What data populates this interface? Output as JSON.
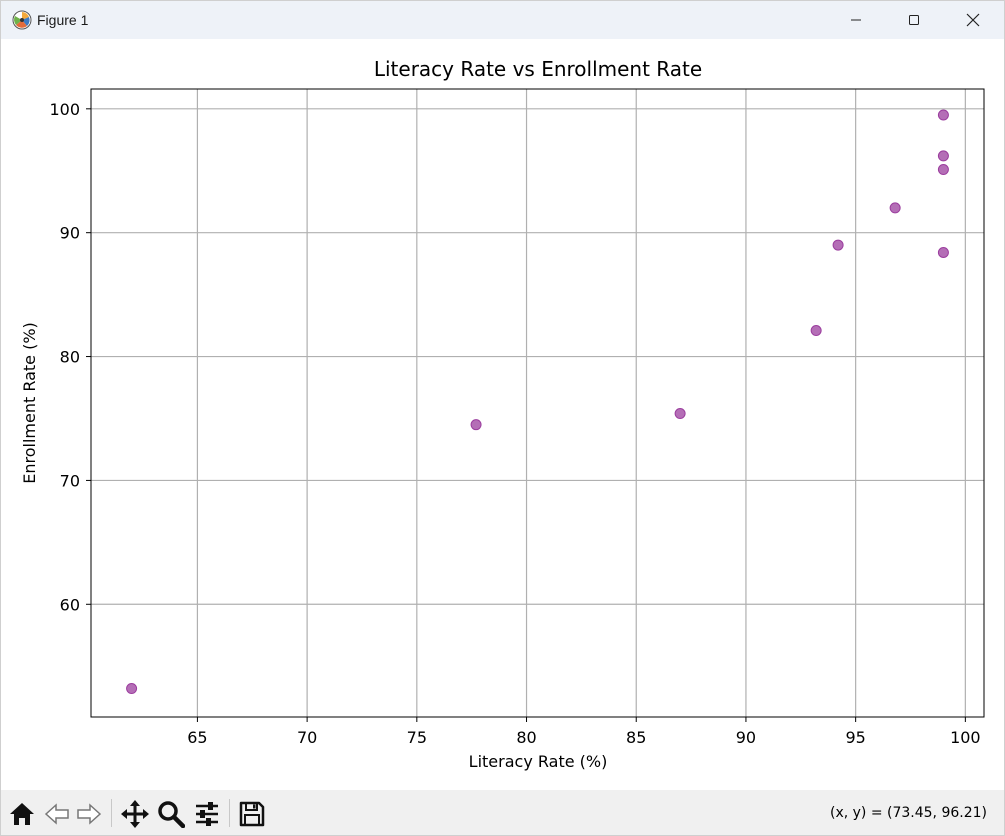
{
  "window": {
    "title": "Figure 1",
    "icons": {
      "app": "matplotlib-icon",
      "minimize": "minimize-icon",
      "maximize": "maximize-icon",
      "close": "close-icon"
    }
  },
  "toolbar": {
    "tools": [
      {
        "name": "home-icon"
      },
      {
        "name": "back-arrow-icon"
      },
      {
        "name": "forward-arrow-icon"
      },
      {
        "name": "pan-icon"
      },
      {
        "name": "zoom-icon"
      },
      {
        "name": "configure-subplots-icon"
      },
      {
        "name": "save-icon"
      }
    ],
    "coords_text": "(x, y) = (73.45, 96.21)"
  },
  "chart_data": {
    "type": "scatter",
    "title": "Literacy Rate vs Enrollment Rate",
    "xlabel": "Literacy Rate (%)",
    "ylabel": "Enrollment Rate (%)",
    "xlim": [
      60.15,
      100.85
    ],
    "ylim": [
      50.9,
      101.6
    ],
    "xticks": [
      65,
      70,
      75,
      80,
      85,
      90,
      95,
      100
    ],
    "yticks": [
      60,
      70,
      80,
      90,
      100
    ],
    "grid": true,
    "marker_color": "#9b3d9e",
    "points": [
      {
        "x": 62.0,
        "y": 53.2
      },
      {
        "x": 77.7,
        "y": 74.5
      },
      {
        "x": 87.0,
        "y": 75.4
      },
      {
        "x": 93.2,
        "y": 82.1
      },
      {
        "x": 94.2,
        "y": 89.0
      },
      {
        "x": 96.8,
        "y": 92.0
      },
      {
        "x": 99.0,
        "y": 88.4
      },
      {
        "x": 99.0,
        "y": 95.1
      },
      {
        "x": 99.0,
        "y": 96.2
      },
      {
        "x": 99.0,
        "y": 99.5
      }
    ]
  }
}
